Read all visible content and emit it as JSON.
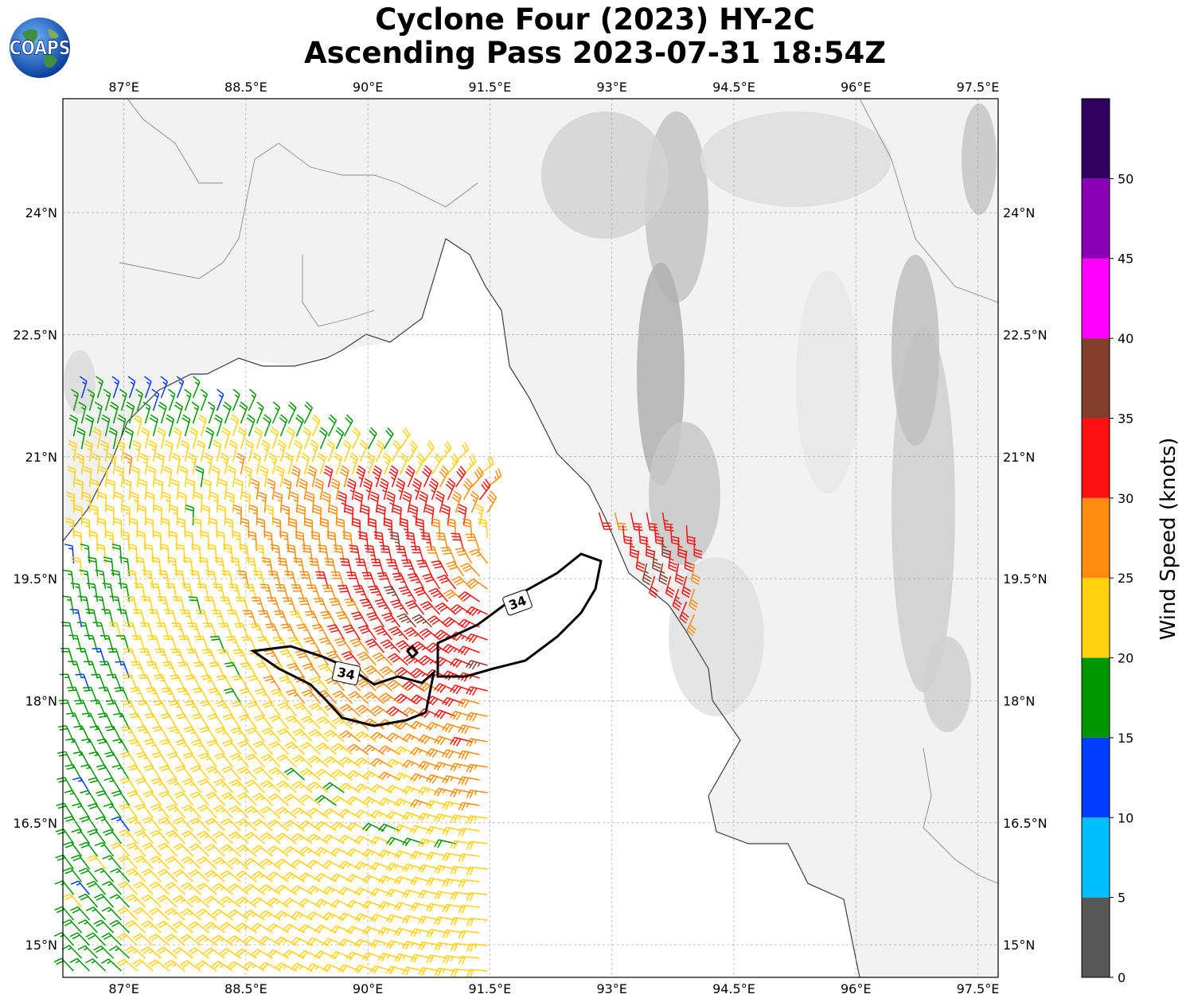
{
  "title": {
    "line1": "Cyclone Four (2023) HY-2C",
    "line2": "Ascending Pass 2023-07-31 18:54Z"
  },
  "logo": {
    "text": "COAPS"
  },
  "map": {
    "lon_range": [
      86.25,
      97.75
    ],
    "lat_range": [
      14.6,
      25.4
    ],
    "lon_ticks": [
      "87°E",
      "88.5°E",
      "90°E",
      "91.5°E",
      "93°E",
      "94.5°E",
      "96°E",
      "97.5°E"
    ],
    "lat_ticks": [
      "24°N",
      "22.5°N",
      "21°N",
      "19.5°N",
      "18°N",
      "16.5°N",
      "15°N"
    ],
    "contour_label": "34",
    "land_color": "#f2f2f2",
    "ocean_color": "#ffffff"
  },
  "colorbar": {
    "title": "Wind Speed (knots)",
    "tick_labels": [
      "0",
      "5",
      "10",
      "15",
      "20",
      "25",
      "30",
      "35",
      "40",
      "45",
      "50"
    ],
    "colors": [
      "#585858",
      "#00bfff",
      "#003bff",
      "#009600",
      "#ffd110",
      "#ff8c0d",
      "#ff1010",
      "#833f2c",
      "#ff00ff",
      "#8b00b5",
      "#300060"
    ]
  }
}
